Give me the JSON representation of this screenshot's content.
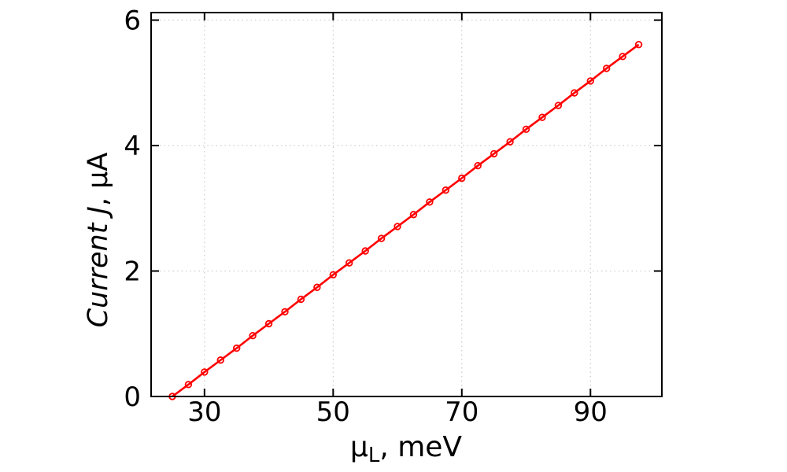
{
  "chart_data": {
    "type": "line",
    "title": "",
    "xlabel": {
      "prefix": "μ",
      "sub": "L",
      "suffix": ", meV"
    },
    "ylabel": {
      "italic": "Current J",
      "rest": ", μA"
    },
    "x": [
      25,
      27.5,
      30,
      32.5,
      35,
      37.5,
      40,
      42.5,
      45,
      47.5,
      50,
      52.5,
      55,
      57.5,
      60,
      62.5,
      65,
      67.5,
      70,
      72.5,
      75,
      77.5,
      80,
      82.5,
      85,
      87.5,
      90,
      92.5,
      95,
      97.5
    ],
    "y": [
      0,
      0.19,
      0.39,
      0.58,
      0.77,
      0.97,
      1.16,
      1.35,
      1.55,
      1.74,
      1.94,
      2.13,
      2.32,
      2.52,
      2.71,
      2.9,
      3.1,
      3.29,
      3.48,
      3.68,
      3.87,
      4.06,
      4.26,
      4.45,
      4.64,
      4.84,
      5.03,
      5.23,
      5.42,
      5.61
    ],
    "xlim": [
      21.7,
      101.1
    ],
    "ylim": [
      0,
      6.12
    ],
    "xticks": [
      30,
      50,
      70,
      90
    ],
    "yticks": [
      0,
      2,
      4,
      6
    ],
    "grid": "dotted",
    "legend": "none",
    "line_color": "#ff0000",
    "grid_color": "#c0c0c0",
    "axis_color": "#000000",
    "marker": "open-circle"
  }
}
